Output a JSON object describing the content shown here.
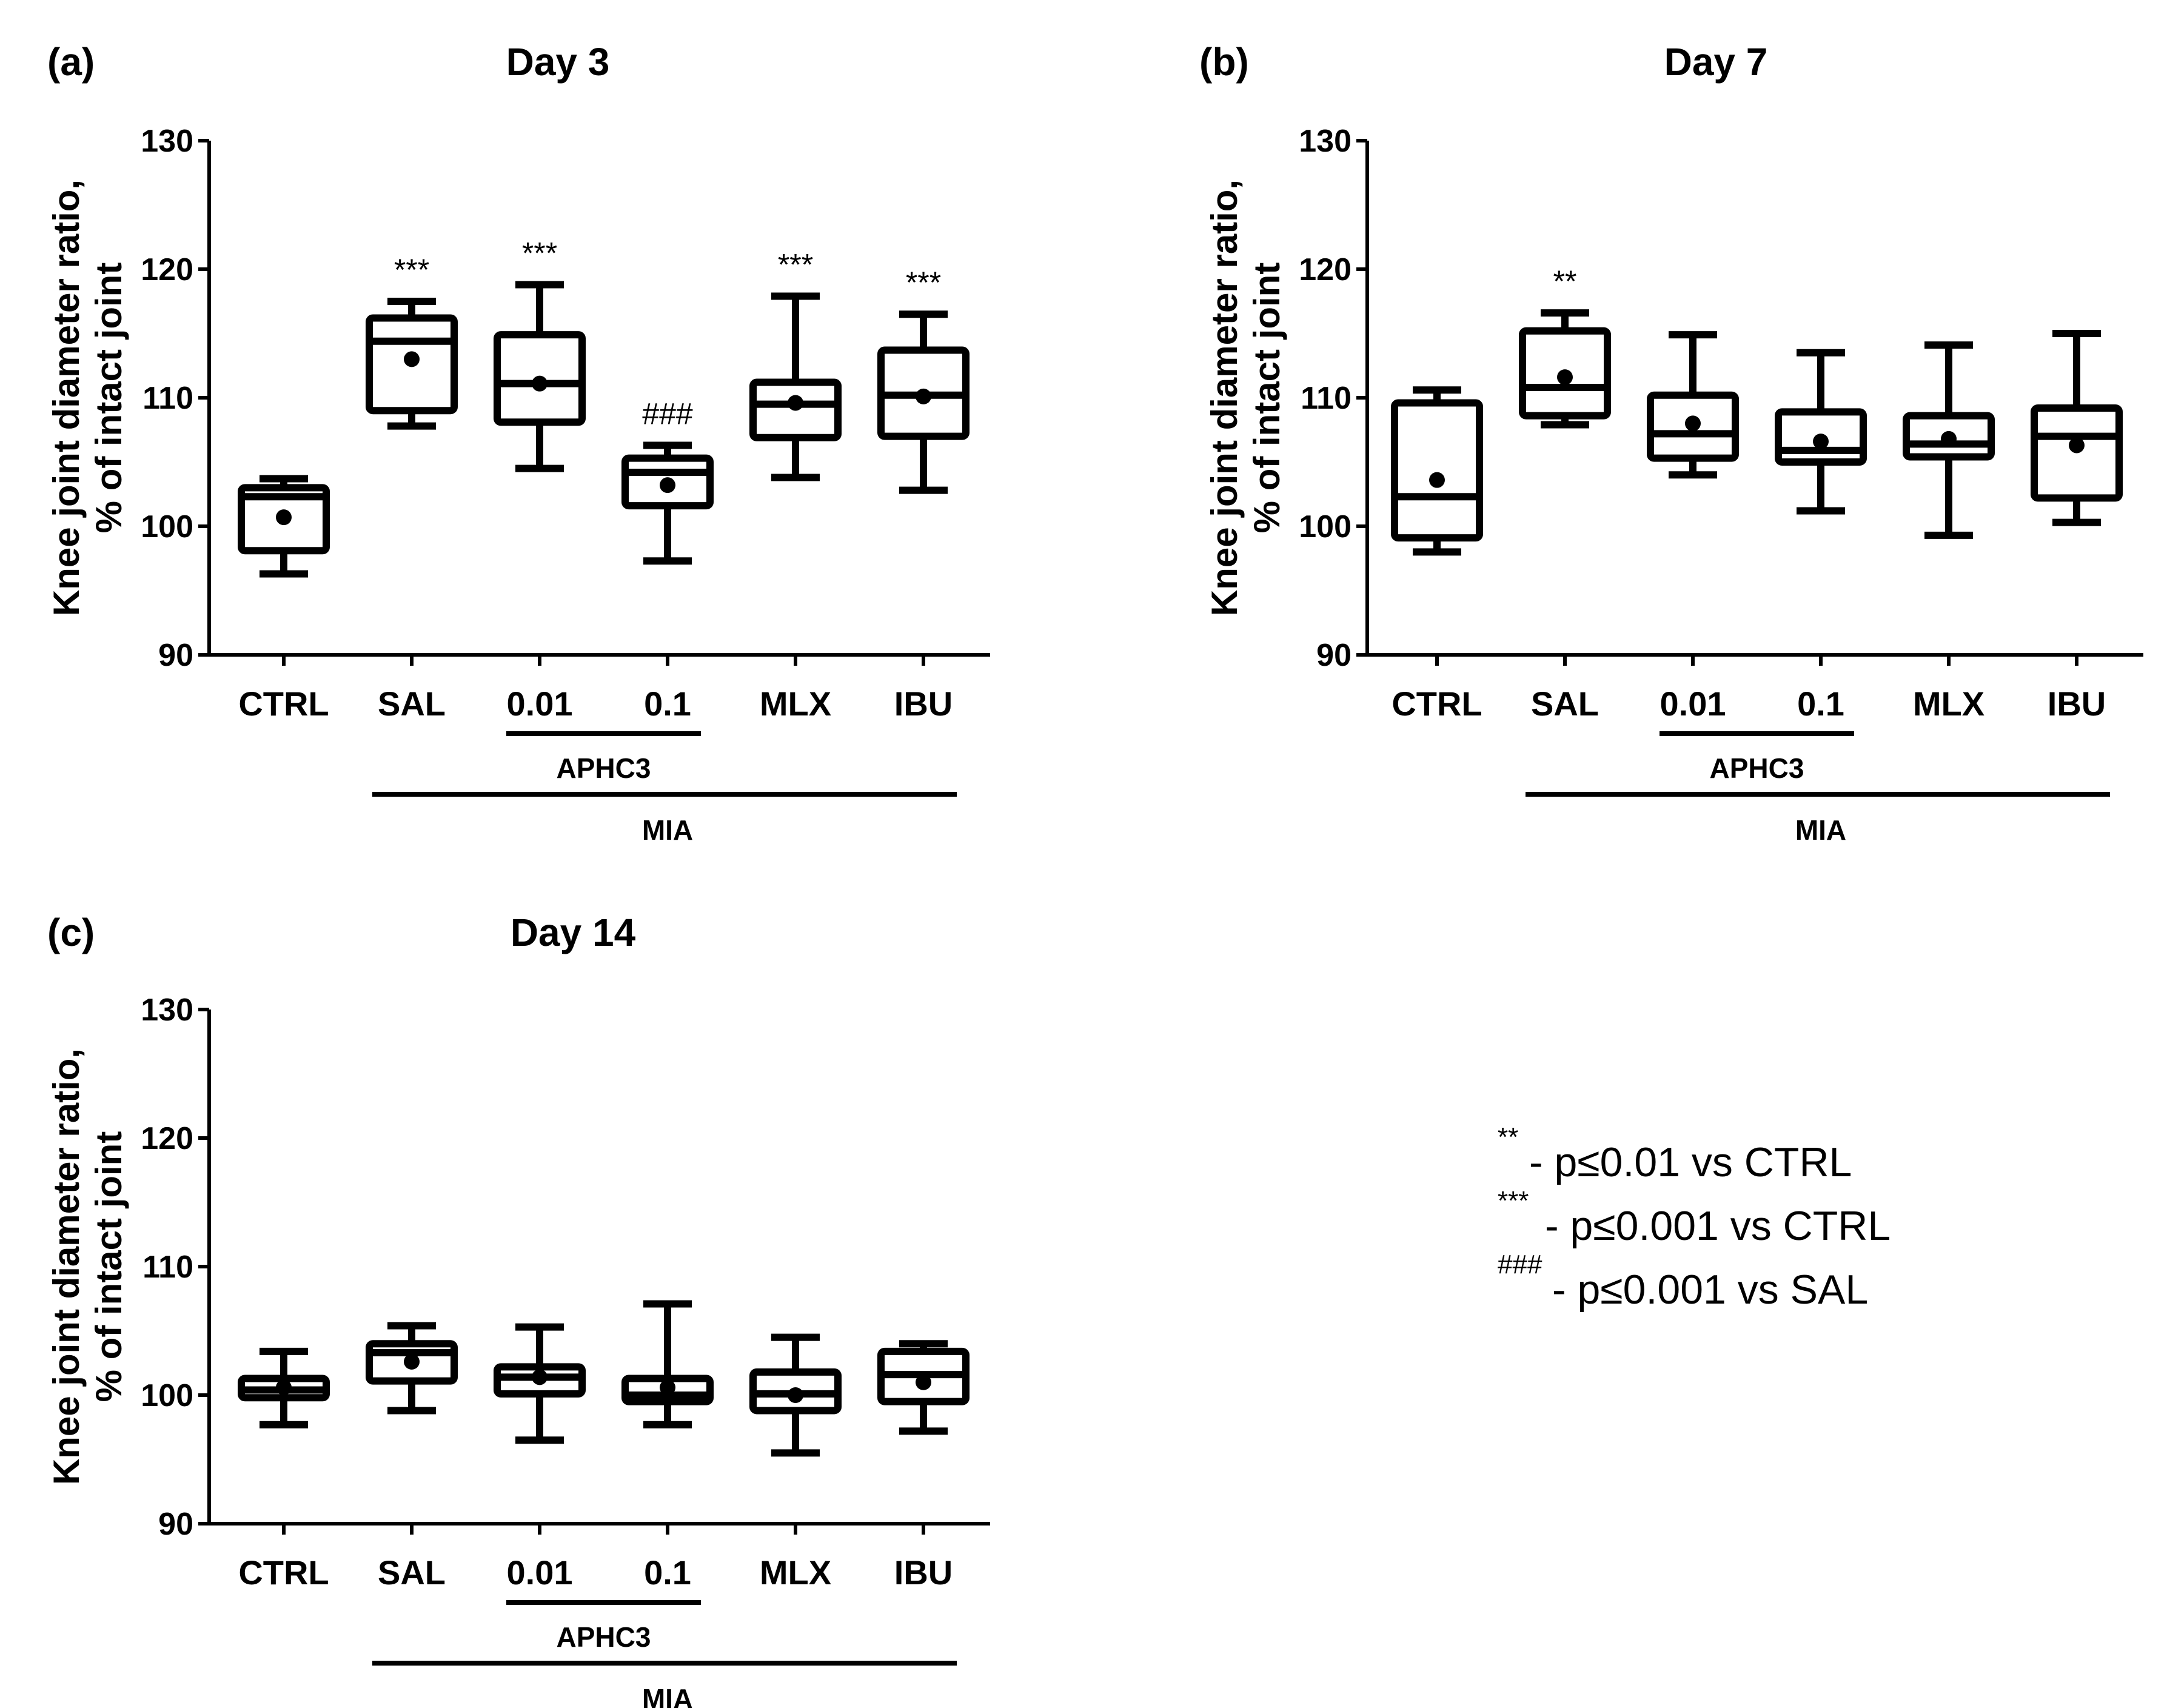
{
  "chart_data": [
    {
      "type": "boxplot",
      "panel_label": "(a)",
      "title": "Day 3",
      "ylabel_lines": [
        "Knee joint diameter ratio,",
        "% of intact joint"
      ],
      "ylim": [
        90,
        130
      ],
      "yticks": [
        "90",
        "100",
        "110",
        "120",
        "130"
      ],
      "categories": [
        "CTRL",
        "SAL",
        "0.01",
        "0.1",
        "MLX",
        "IBU"
      ],
      "boxes": [
        {
          "min": 96.3,
          "q1": 98.1,
          "median": 102.3,
          "q3": 103.0,
          "max": 103.7,
          "mean": 100.7
        },
        {
          "min": 107.8,
          "q1": 109.0,
          "median": 114.4,
          "q3": 116.2,
          "max": 117.5,
          "mean": 113.0
        },
        {
          "min": 104.5,
          "q1": 108.1,
          "median": 111.1,
          "q3": 114.9,
          "max": 118.8,
          "mean": 111.1
        },
        {
          "min": 97.3,
          "q1": 101.6,
          "median": 104.2,
          "q3": 105.3,
          "max": 106.3,
          "mean": 103.2
        },
        {
          "min": 103.8,
          "q1": 106.9,
          "median": 109.5,
          "q3": 111.2,
          "max": 117.9,
          "mean": 109.6
        },
        {
          "min": 102.8,
          "q1": 107.0,
          "median": 110.2,
          "q3": 113.7,
          "max": 116.5,
          "mean": 110.1
        }
      ],
      "significance": [
        "",
        "***",
        "***",
        "###",
        "***",
        "***"
      ],
      "group_labels": {
        "inner": "APHC3",
        "outer": "MIA"
      }
    },
    {
      "type": "boxplot",
      "panel_label": "(b)",
      "title": "Day 7",
      "ylabel_lines": [
        "Knee joint diameter ratio,",
        "% of intact joint"
      ],
      "ylim": [
        90,
        130
      ],
      "yticks": [
        "90",
        "100",
        "110",
        "120",
        "130"
      ],
      "categories": [
        "CTRL",
        "SAL",
        "0.01",
        "0.1",
        "MLX",
        "IBU"
      ],
      "boxes": [
        {
          "min": 98.0,
          "q1": 99.1,
          "median": 102.3,
          "q3": 109.6,
          "max": 110.6,
          "mean": 103.6
        },
        {
          "min": 107.9,
          "q1": 108.6,
          "median": 110.8,
          "q3": 115.2,
          "max": 116.6,
          "mean": 111.6
        },
        {
          "min": 104.0,
          "q1": 105.3,
          "median": 107.2,
          "q3": 110.2,
          "max": 114.9,
          "mean": 108.0
        },
        {
          "min": 101.2,
          "q1": 105.0,
          "median": 105.9,
          "q3": 108.9,
          "max": 113.5,
          "mean": 106.6
        },
        {
          "min": 99.3,
          "q1": 105.4,
          "median": 106.4,
          "q3": 108.6,
          "max": 114.1,
          "mean": 106.8
        },
        {
          "min": 100.3,
          "q1": 102.2,
          "median": 107.0,
          "q3": 109.2,
          "max": 115.0,
          "mean": 106.3
        }
      ],
      "significance": [
        "",
        "**",
        "",
        "",
        "",
        ""
      ],
      "group_labels": {
        "inner": "APHC3",
        "outer": "MIA"
      }
    },
    {
      "type": "boxplot",
      "panel_label": "(c)",
      "title": "Day 14",
      "ylabel_lines": [
        "Knee joint diameter ratio,",
        "% of intact joint"
      ],
      "ylim": [
        90,
        130
      ],
      "yticks": [
        "90",
        "100",
        "110",
        "120",
        "130"
      ],
      "categories": [
        "CTRL",
        "SAL",
        "0.01",
        "0.1",
        "MLX",
        "IBU"
      ],
      "boxes": [
        {
          "min": 97.7,
          "q1": 99.8,
          "median": 100.4,
          "q3": 101.3,
          "max": 103.4,
          "mean": 100.6
        },
        {
          "min": 98.8,
          "q1": 101.1,
          "median": 103.3,
          "q3": 104.0,
          "max": 105.4,
          "mean": 102.6
        },
        {
          "min": 96.5,
          "q1": 100.1,
          "median": 101.4,
          "q3": 102.2,
          "max": 105.3,
          "mean": 101.4
        },
        {
          "min": 97.7,
          "q1": 99.5,
          "median": 100.0,
          "q3": 101.3,
          "max": 107.1,
          "mean": 100.6
        },
        {
          "min": 95.5,
          "q1": 98.8,
          "median": 100.1,
          "q3": 101.8,
          "max": 104.5,
          "mean": 100.0
        },
        {
          "min": 97.2,
          "q1": 99.5,
          "median": 101.6,
          "q3": 103.4,
          "max": 104.0,
          "mean": 101.0
        }
      ],
      "significance": [
        "",
        "",
        "",
        "",
        "",
        ""
      ],
      "group_labels": {
        "inner": "APHC3",
        "outer": "MIA"
      }
    }
  ],
  "legend": [
    {
      "prefix": "**",
      "text": "- p≤0.01 vs CTRL"
    },
    {
      "prefix": "***",
      "text": "- p≤0.001 vs CTRL"
    },
    {
      "prefix": "###",
      "text": " - p≤0.001 vs SAL"
    }
  ]
}
